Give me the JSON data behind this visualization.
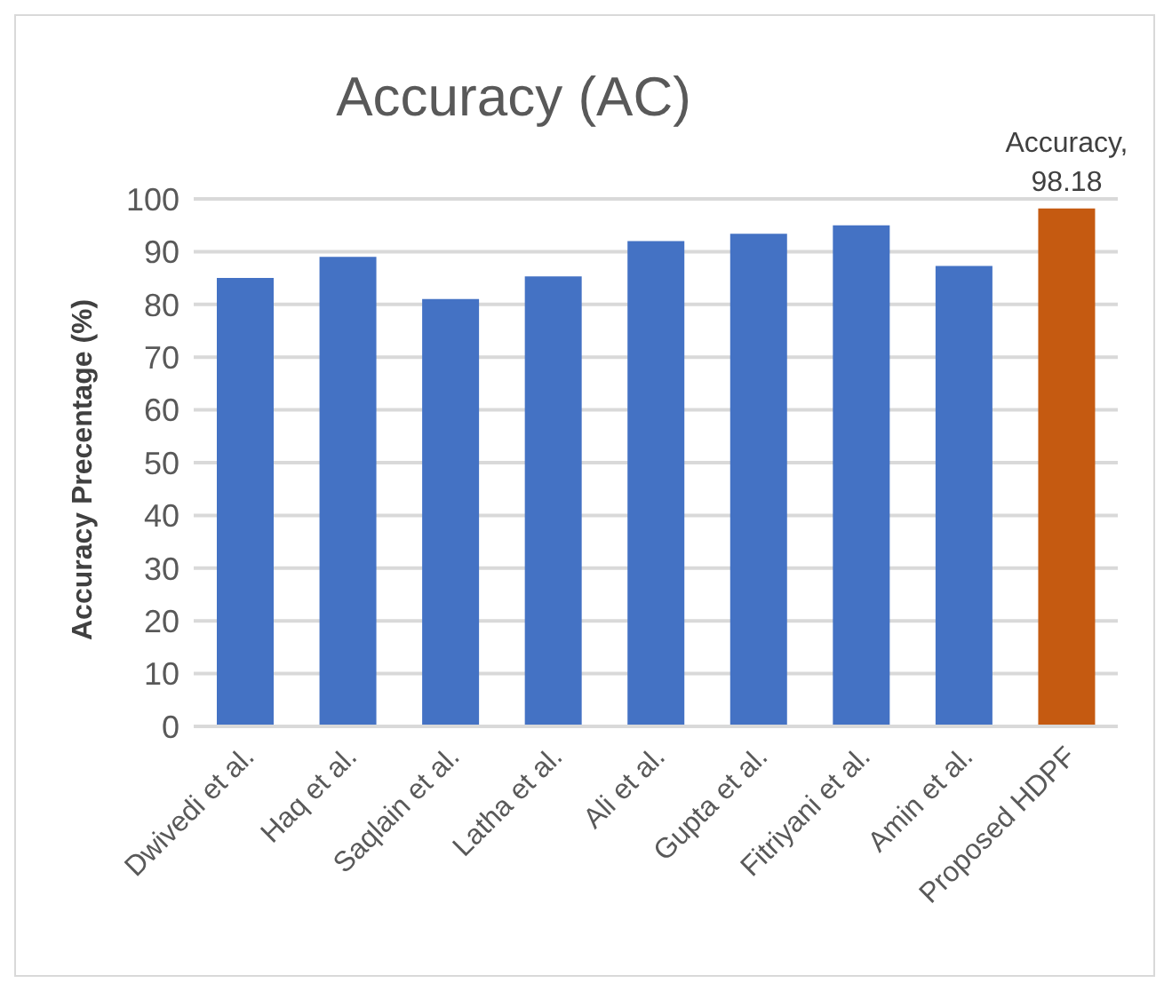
{
  "chart_data": {
    "type": "bar",
    "title": "Accuracy (AC)",
    "ylabel": "Accuracy Precentage (%)",
    "categories": [
      "Dwivedi et al.",
      "Haq et al.",
      "Saqlain et al.",
      "Latha et al.",
      "Ali et al.",
      "Gupta et al.",
      "Fitriyani et al.",
      "Amin et al.",
      "Proposed HDPF"
    ],
    "values": [
      85,
      89,
      81,
      85.3,
      92,
      93.4,
      95,
      87.3,
      98.18
    ],
    "colors": [
      "#4472c4",
      "#4472c4",
      "#4472c4",
      "#4472c4",
      "#4472c4",
      "#4472c4",
      "#4472c4",
      "#4472c4",
      "#c55a11"
    ],
    "value_labels": [
      null,
      null,
      null,
      null,
      null,
      null,
      null,
      null,
      "Accuracy, 98.18"
    ],
    "ylim": [
      0,
      100
    ],
    "yticks": [
      0,
      10,
      20,
      30,
      40,
      50,
      60,
      70,
      80,
      90,
      100
    ],
    "grid": "y"
  }
}
